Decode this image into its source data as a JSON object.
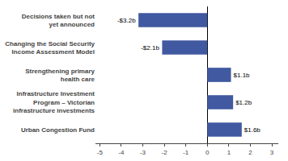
{
  "chart_data": {
    "type": "bar",
    "orientation": "horizontal",
    "categories": [
      "Urban Congestion Fund",
      "Infrastructure Investment\nProgram – Victorian\ninfrastructure investments",
      "Strengthening primary\nhealth care",
      "Changing the Social Security\nIncome Assessment Model",
      "Decisions taken but not\nyet announced"
    ],
    "values": [
      1.6,
      1.2,
      1.1,
      -2.1,
      -3.2
    ],
    "value_labels": [
      "$1.6b",
      "$1.2b",
      "$1.1b",
      "-$2.1b",
      "-$3.2b"
    ],
    "data_labels": true,
    "color": "#4059a0",
    "xlim": [
      -5.2,
      3.3
    ],
    "xticks": [
      -5,
      -4,
      -3,
      -2,
      -1,
      0,
      1,
      2,
      3
    ],
    "grid": false
  }
}
